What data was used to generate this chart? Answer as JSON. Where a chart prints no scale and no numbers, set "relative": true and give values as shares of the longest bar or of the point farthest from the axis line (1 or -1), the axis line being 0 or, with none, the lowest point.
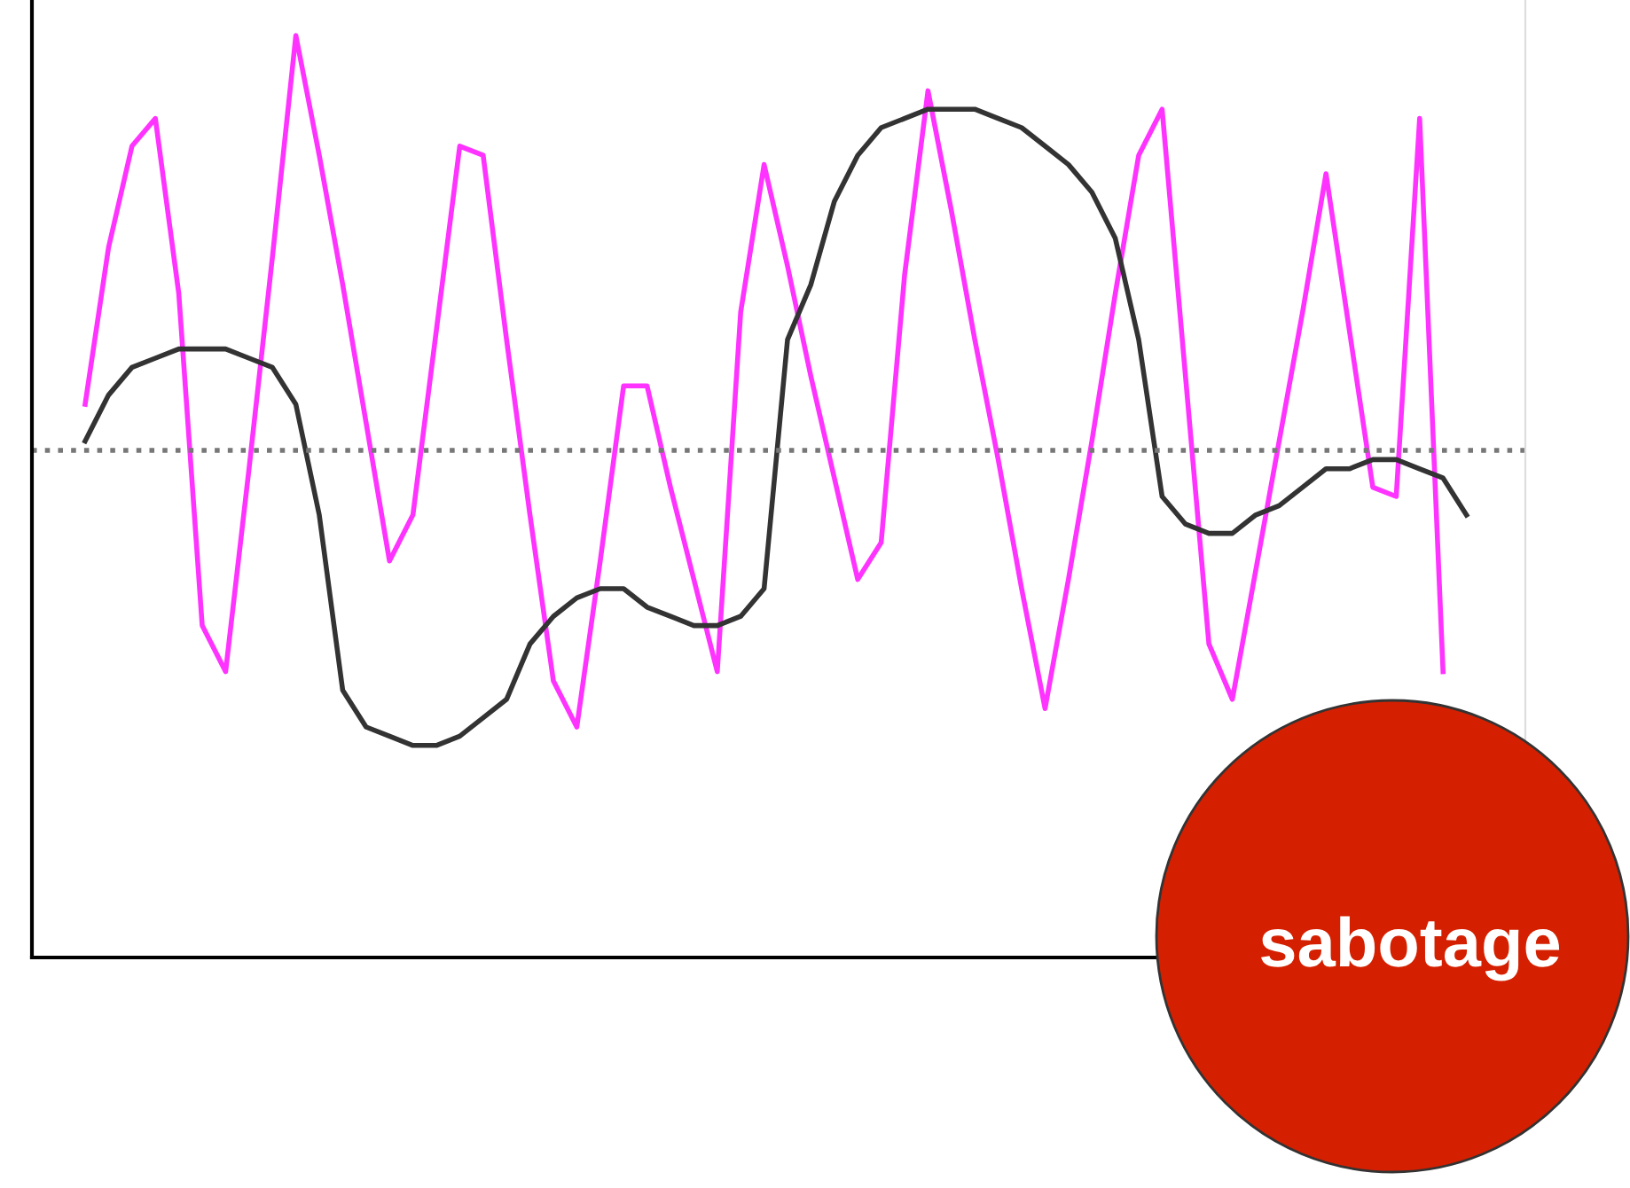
{
  "chart_data": {
    "type": "line",
    "relative": true,
    "marker": "none",
    "line_style": "solid",
    "categories": [
      null,
      null,
      null,
      null,
      null,
      null,
      null,
      null,
      null,
      null,
      null,
      null,
      null,
      null,
      null,
      null,
      null,
      null,
      null,
      null,
      null,
      null,
      null,
      null,
      null,
      null,
      null,
      null,
      null,
      null,
      null,
      null,
      null,
      null,
      null,
      null,
      null,
      null,
      null,
      null,
      null,
      null,
      null,
      null,
      null,
      null,
      null,
      null,
      null,
      null,
      null,
      null,
      null,
      null,
      null,
      null,
      null,
      null,
      null,
      null
    ],
    "series": [
      {
        "color": "#ff33ff",
        "values": [
          0.6,
          0.77,
          0.88,
          0.91,
          0.72,
          0.36,
          0.31,
          0.53,
          0.76,
          1.0,
          0.87,
          0.73,
          0.58,
          0.43,
          0.48,
          0.68,
          0.88,
          0.87,
          0.67,
          0.48,
          0.3,
          0.25,
          0.43,
          0.62,
          0.62,
          0.51,
          0.41,
          0.31,
          0.7,
          0.86,
          0.75,
          0.63,
          0.52,
          0.41,
          0.45,
          0.74,
          0.94,
          0.81,
          0.67,
          0.54,
          0.4,
          0.27,
          0.41,
          0.56,
          0.72,
          0.87,
          0.92,
          0.63,
          0.34,
          0.28,
          0.42,
          0.56,
          0.7,
          0.85,
          0.68,
          0.51,
          0.5,
          0.91,
          0.31,
          null
        ]
      },
      {
        "color": "#333333",
        "values": [
          0.56,
          0.61,
          0.64,
          0.65,
          0.66,
          0.66,
          0.66,
          0.65,
          0.64,
          0.6,
          0.48,
          0.29,
          0.25,
          0.24,
          0.23,
          0.23,
          0.24,
          0.26,
          0.28,
          0.34,
          0.37,
          0.39,
          0.4,
          0.4,
          0.38,
          0.37,
          0.36,
          0.36,
          0.37,
          0.4,
          0.67,
          0.73,
          0.82,
          0.87,
          0.9,
          0.91,
          0.92,
          0.92,
          0.92,
          0.91,
          0.9,
          0.88,
          0.86,
          0.83,
          0.78,
          0.67,
          0.5,
          0.47,
          0.46,
          0.46,
          0.48,
          0.49,
          0.51,
          0.53,
          0.53,
          0.54,
          0.54,
          0.53,
          0.52,
          0.48
        ]
      }
    ],
    "ref_lines": [
      {
        "axis": "y",
        "value": 0.55,
        "color": "#777777",
        "line_style": "dotted"
      }
    ],
    "annotations": [
      "sabotage"
    ]
  }
}
